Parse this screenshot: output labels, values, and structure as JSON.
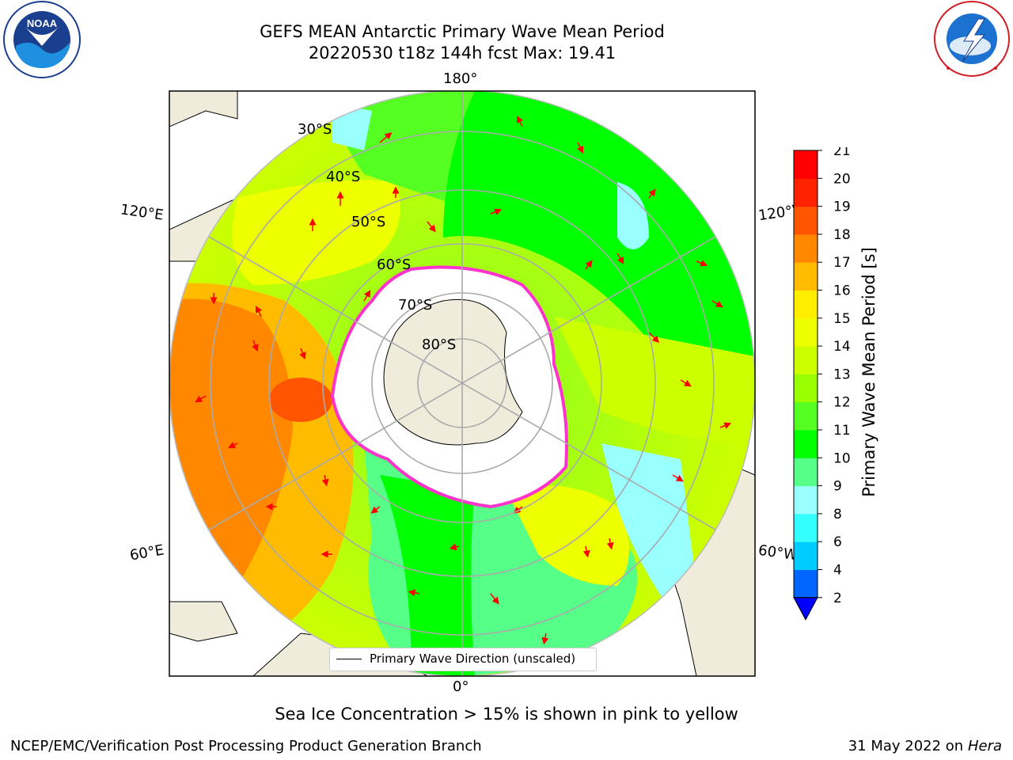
{
  "header": {
    "title_line1": "GEFS MEAN Antarctic Primary Wave Mean Period",
    "title_line2": "20220530 t18z 144h fcst   Max: 19.41"
  },
  "logos": {
    "left": {
      "text": "NOAA",
      "ring_text": "NATIONAL OCEANIC AND ATMOSPHERIC ADMINISTRATION · U.S. DEPARTMENT OF COMMERCE"
    },
    "right": {
      "ring_text": "NATIONAL WEATHER SERVICE"
    }
  },
  "map": {
    "projection": "south-polar-stereographic",
    "longitude_labels": {
      "top": "180°",
      "bottom": "0°",
      "upper_left": "120°E",
      "upper_right": "120°W",
      "lower_left": "60°E",
      "lower_right": "60°W"
    },
    "latitude_labels": [
      "30°S",
      "40°S",
      "50°S",
      "60°S",
      "70°S",
      "80°S"
    ],
    "legend": {
      "label": "Primary Wave Direction (unscaled)"
    }
  },
  "colorbar": {
    "label": "Primary Wave Mean Period [s]",
    "ticks": [
      "2",
      "4",
      "6",
      "8",
      "9",
      "10",
      "11",
      "12",
      "13",
      "14",
      "15",
      "16",
      "17",
      "18",
      "19",
      "20",
      "21"
    ],
    "colors": [
      "#0066ff",
      "#00ccff",
      "#33ffff",
      "#99ffff",
      "#55ff88",
      "#00ff00",
      "#55ff22",
      "#99ff00",
      "#ccff00",
      "#eeff00",
      "#ffee00",
      "#ffbb00",
      "#ff8800",
      "#ff5500",
      "#ff2200",
      "#ff0000"
    ],
    "under_color": "#0000ff"
  },
  "footer": {
    "subtitle": "Sea Ice Concentration > 15% is shown in pink to yellow",
    "credit": "NCEP/EMC/Verification Post Processing Product Generation Branch",
    "date": "31 May 2022 on",
    "host": "Hera"
  }
}
